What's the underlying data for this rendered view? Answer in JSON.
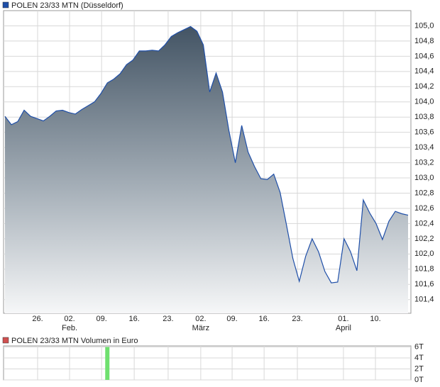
{
  "chart_data": [
    {
      "type": "area",
      "title": "POLEN 23/33 MTN (Düsseldorf)",
      "color": "#1f4fa8",
      "grid": true,
      "x": [
        0,
        1,
        2,
        3,
        4,
        5,
        6,
        7,
        8,
        9,
        10,
        11,
        12,
        13,
        14,
        15,
        16,
        17,
        18,
        19,
        20,
        21,
        22,
        23,
        24,
        25,
        26,
        27,
        28,
        29,
        30,
        31,
        32,
        33,
        34,
        35,
        36,
        37,
        38,
        39,
        40,
        41,
        42,
        43,
        44,
        45,
        46,
        47,
        48,
        49,
        50,
        51,
        52,
        53,
        54,
        55,
        56,
        57,
        58,
        59,
        60,
        61,
        62,
        63
      ],
      "values": [
        103.81,
        103.7,
        103.74,
        103.89,
        103.81,
        103.78,
        103.75,
        103.81,
        103.88,
        103.89,
        103.86,
        103.84,
        103.9,
        103.95,
        104.0,
        104.11,
        104.25,
        104.3,
        104.37,
        104.49,
        104.55,
        104.67,
        104.67,
        104.68,
        104.67,
        104.75,
        104.86,
        104.91,
        104.95,
        104.99,
        104.93,
        104.75,
        104.13,
        104.38,
        104.13,
        103.62,
        103.2,
        103.69,
        103.34,
        103.15,
        102.99,
        102.98,
        103.05,
        102.81,
        102.38,
        101.94,
        101.64,
        101.97,
        102.2,
        102.03,
        101.77,
        101.62,
        101.63,
        102.2,
        102.03,
        101.78,
        102.71,
        102.54,
        102.4,
        102.19,
        102.43,
        102.56,
        102.53,
        102.51
      ],
      "xlim": [
        0,
        63
      ],
      "ylim": [
        101.22,
        105.2
      ],
      "yticks": [
        {
          "value": 101.4,
          "label": "101,4"
        },
        {
          "value": 101.6,
          "label": "101,6"
        },
        {
          "value": 101.8,
          "label": "101,8"
        },
        {
          "value": 102.0,
          "label": "102,0"
        },
        {
          "value": 102.2,
          "label": "102,2"
        },
        {
          "value": 102.4,
          "label": "102,4"
        },
        {
          "value": 102.6,
          "label": "102,6"
        },
        {
          "value": 102.8,
          "label": "102,8"
        },
        {
          "value": 103.0,
          "label": "103,0"
        },
        {
          "value": 103.2,
          "label": "103,2"
        },
        {
          "value": 103.4,
          "label": "103,4"
        },
        {
          "value": 103.6,
          "label": "103,6"
        },
        {
          "value": 103.8,
          "label": "103,8"
        },
        {
          "value": 104.0,
          "label": "104,0"
        },
        {
          "value": 104.2,
          "label": "104,2"
        },
        {
          "value": 104.4,
          "label": "104,4"
        },
        {
          "value": 104.6,
          "label": "104,6"
        },
        {
          "value": 104.8,
          "label": "104,8"
        },
        {
          "value": 105.0,
          "label": "105,0"
        }
      ],
      "xticks": [
        {
          "value": 5.1,
          "label": "26."
        },
        {
          "value": 10.1,
          "label": "02."
        },
        {
          "value": 15.1,
          "label": "09."
        },
        {
          "value": 20.2,
          "label": "16."
        },
        {
          "value": 25.5,
          "label": "23."
        },
        {
          "value": 30.6,
          "label": "02."
        },
        {
          "value": 35.5,
          "label": "09."
        },
        {
          "value": 40.5,
          "label": "16."
        },
        {
          "value": 45.7,
          "label": "23."
        },
        {
          "value": 52.9,
          "label": "01."
        },
        {
          "value": 57.9,
          "label": "10."
        }
      ],
      "month_labels": [
        {
          "value": 10.1,
          "label": "Feb."
        },
        {
          "value": 30.6,
          "label": "März"
        },
        {
          "value": 52.9,
          "label": "April"
        }
      ]
    },
    {
      "type": "bar",
      "title": "POLEN 23/33 MTN Volumen in Euro",
      "color": "#6ee06e",
      "grid": true,
      "x": [
        16
      ],
      "values": [
        6
      ],
      "xlim": [
        0,
        63
      ],
      "ylim": [
        0,
        6.2
      ],
      "yticks": [
        {
          "value": 0,
          "label": "0T"
        },
        {
          "value": 2,
          "label": "2T"
        },
        {
          "value": 4,
          "label": "4T"
        },
        {
          "value": 6,
          "label": "6T"
        }
      ],
      "xticks": [
        {
          "value": 5.1,
          "label": "26."
        },
        {
          "value": 10.1,
          "label": "02."
        },
        {
          "value": 15.1,
          "label": "09."
        },
        {
          "value": 20.2,
          "label": "16."
        },
        {
          "value": 25.5,
          "label": "23."
        },
        {
          "value": 30.6,
          "label": "02."
        },
        {
          "value": 35.5,
          "label": "09."
        },
        {
          "value": 40.5,
          "label": "16."
        },
        {
          "value": 45.7,
          "label": "23."
        },
        {
          "value": 52.9,
          "label": "01."
        },
        {
          "value": 57.9,
          "label": "10."
        }
      ]
    }
  ]
}
